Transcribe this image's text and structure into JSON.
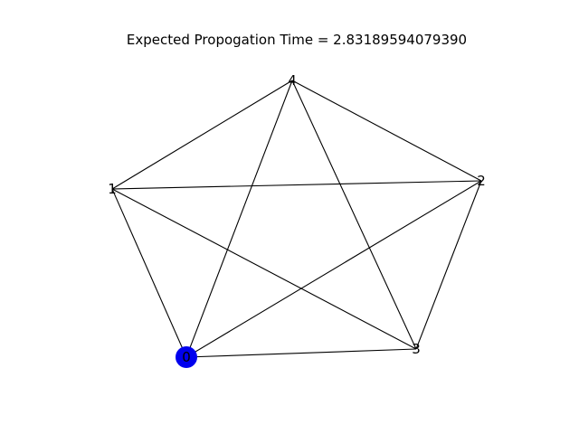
{
  "figure": {
    "title": "Expected Propogation Time = 2.83189594079390"
  },
  "graph": {
    "nodes": [
      {
        "id": "0",
        "label": "0",
        "highlighted": true
      },
      {
        "id": "1",
        "label": "1",
        "highlighted": false
      },
      {
        "id": "2",
        "label": "2",
        "highlighted": false
      },
      {
        "id": "3",
        "label": "3",
        "highlighted": false
      },
      {
        "id": "4",
        "label": "4",
        "highlighted": false
      }
    ],
    "edges": [
      [
        "0",
        "1"
      ],
      [
        "0",
        "2"
      ],
      [
        "0",
        "3"
      ],
      [
        "0",
        "4"
      ],
      [
        "1",
        "2"
      ],
      [
        "1",
        "3"
      ],
      [
        "1",
        "4"
      ],
      [
        "2",
        "3"
      ],
      [
        "2",
        "4"
      ],
      [
        "3",
        "4"
      ]
    ],
    "colors": {
      "highlight_node": "#0000ee",
      "edge": "#000000",
      "label": "#000000"
    }
  }
}
